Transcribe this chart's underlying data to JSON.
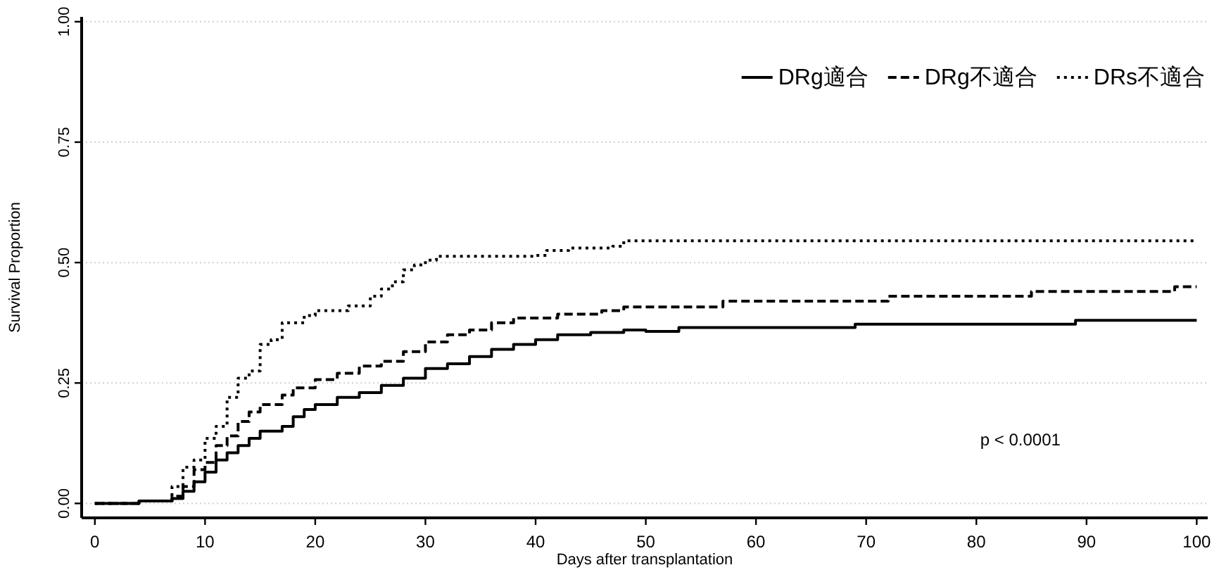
{
  "chart_data": {
    "type": "step",
    "xlabel": "Days after transplantation",
    "ylabel": "Survival Proportion",
    "xlim": [
      -1.2,
      101
    ],
    "xticks": [
      0,
      10,
      20,
      30,
      40,
      50,
      60,
      70,
      80,
      90,
      100
    ],
    "ylim": [
      -0.03,
      1.01
    ],
    "yticks": [
      {
        "value": 0,
        "label": "0.00"
      },
      {
        "value": 0.25,
        "label": "0.25"
      },
      {
        "value": 0.5,
        "label": "0.50"
      },
      {
        "value": 0.75,
        "label": "0.75"
      },
      {
        "value": 1,
        "label": "1.00"
      }
    ],
    "grid": "y",
    "legend": "top right",
    "annotations": [
      "p < 0.0001"
    ],
    "series": [
      {
        "name": "DRg適合",
        "color": "#000000",
        "line_style": "solid",
        "x": [
          0,
          4,
          7,
          8,
          9,
          10,
          11,
          12,
          13,
          14,
          15,
          17,
          18,
          19,
          20,
          22,
          24,
          26,
          28,
          30,
          32,
          34,
          36,
          38,
          40,
          42,
          45,
          48,
          50,
          53,
          69,
          89,
          100
        ],
        "values": [
          0,
          0.005,
          0.01,
          0.025,
          0.045,
          0.065,
          0.09,
          0.105,
          0.12,
          0.135,
          0.15,
          0.16,
          0.18,
          0.195,
          0.205,
          0.22,
          0.23,
          0.245,
          0.26,
          0.28,
          0.29,
          0.305,
          0.32,
          0.33,
          0.34,
          0.35,
          0.355,
          0.36,
          0.357,
          0.365,
          0.372,
          0.38,
          0.38
        ]
      },
      {
        "name": "DRg不適合",
        "color": "#000000",
        "line_style": "dashed",
        "x": [
          0,
          4,
          7,
          8,
          9,
          10,
          11,
          12,
          13,
          14,
          15,
          17,
          18,
          20,
          22,
          24,
          26,
          28,
          30,
          32,
          34,
          36,
          38,
          42,
          46,
          48,
          57,
          72,
          85,
          98,
          100
        ],
        "values": [
          0,
          0.005,
          0.015,
          0.035,
          0.07,
          0.085,
          0.12,
          0.14,
          0.17,
          0.19,
          0.205,
          0.225,
          0.24,
          0.257,
          0.27,
          0.285,
          0.295,
          0.315,
          0.335,
          0.35,
          0.36,
          0.375,
          0.385,
          0.393,
          0.4,
          0.408,
          0.42,
          0.43,
          0.44,
          0.45,
          0.45
        ]
      },
      {
        "name": "DRs不適合",
        "color": "#000000",
        "line_style": "dotted",
        "x": [
          0,
          4,
          7,
          8,
          9,
          10,
          11,
          12,
          13,
          14,
          15,
          16,
          17,
          19,
          20,
          23,
          25,
          26,
          27,
          28,
          29,
          30,
          31,
          40,
          41,
          43,
          47,
          48,
          100
        ],
        "values": [
          0,
          0.005,
          0.035,
          0.075,
          0.09,
          0.135,
          0.16,
          0.22,
          0.26,
          0.275,
          0.33,
          0.34,
          0.375,
          0.39,
          0.4,
          0.41,
          0.43,
          0.445,
          0.46,
          0.485,
          0.495,
          0.505,
          0.513,
          0.515,
          0.525,
          0.53,
          0.534,
          0.545,
          0.545
        ]
      }
    ]
  }
}
